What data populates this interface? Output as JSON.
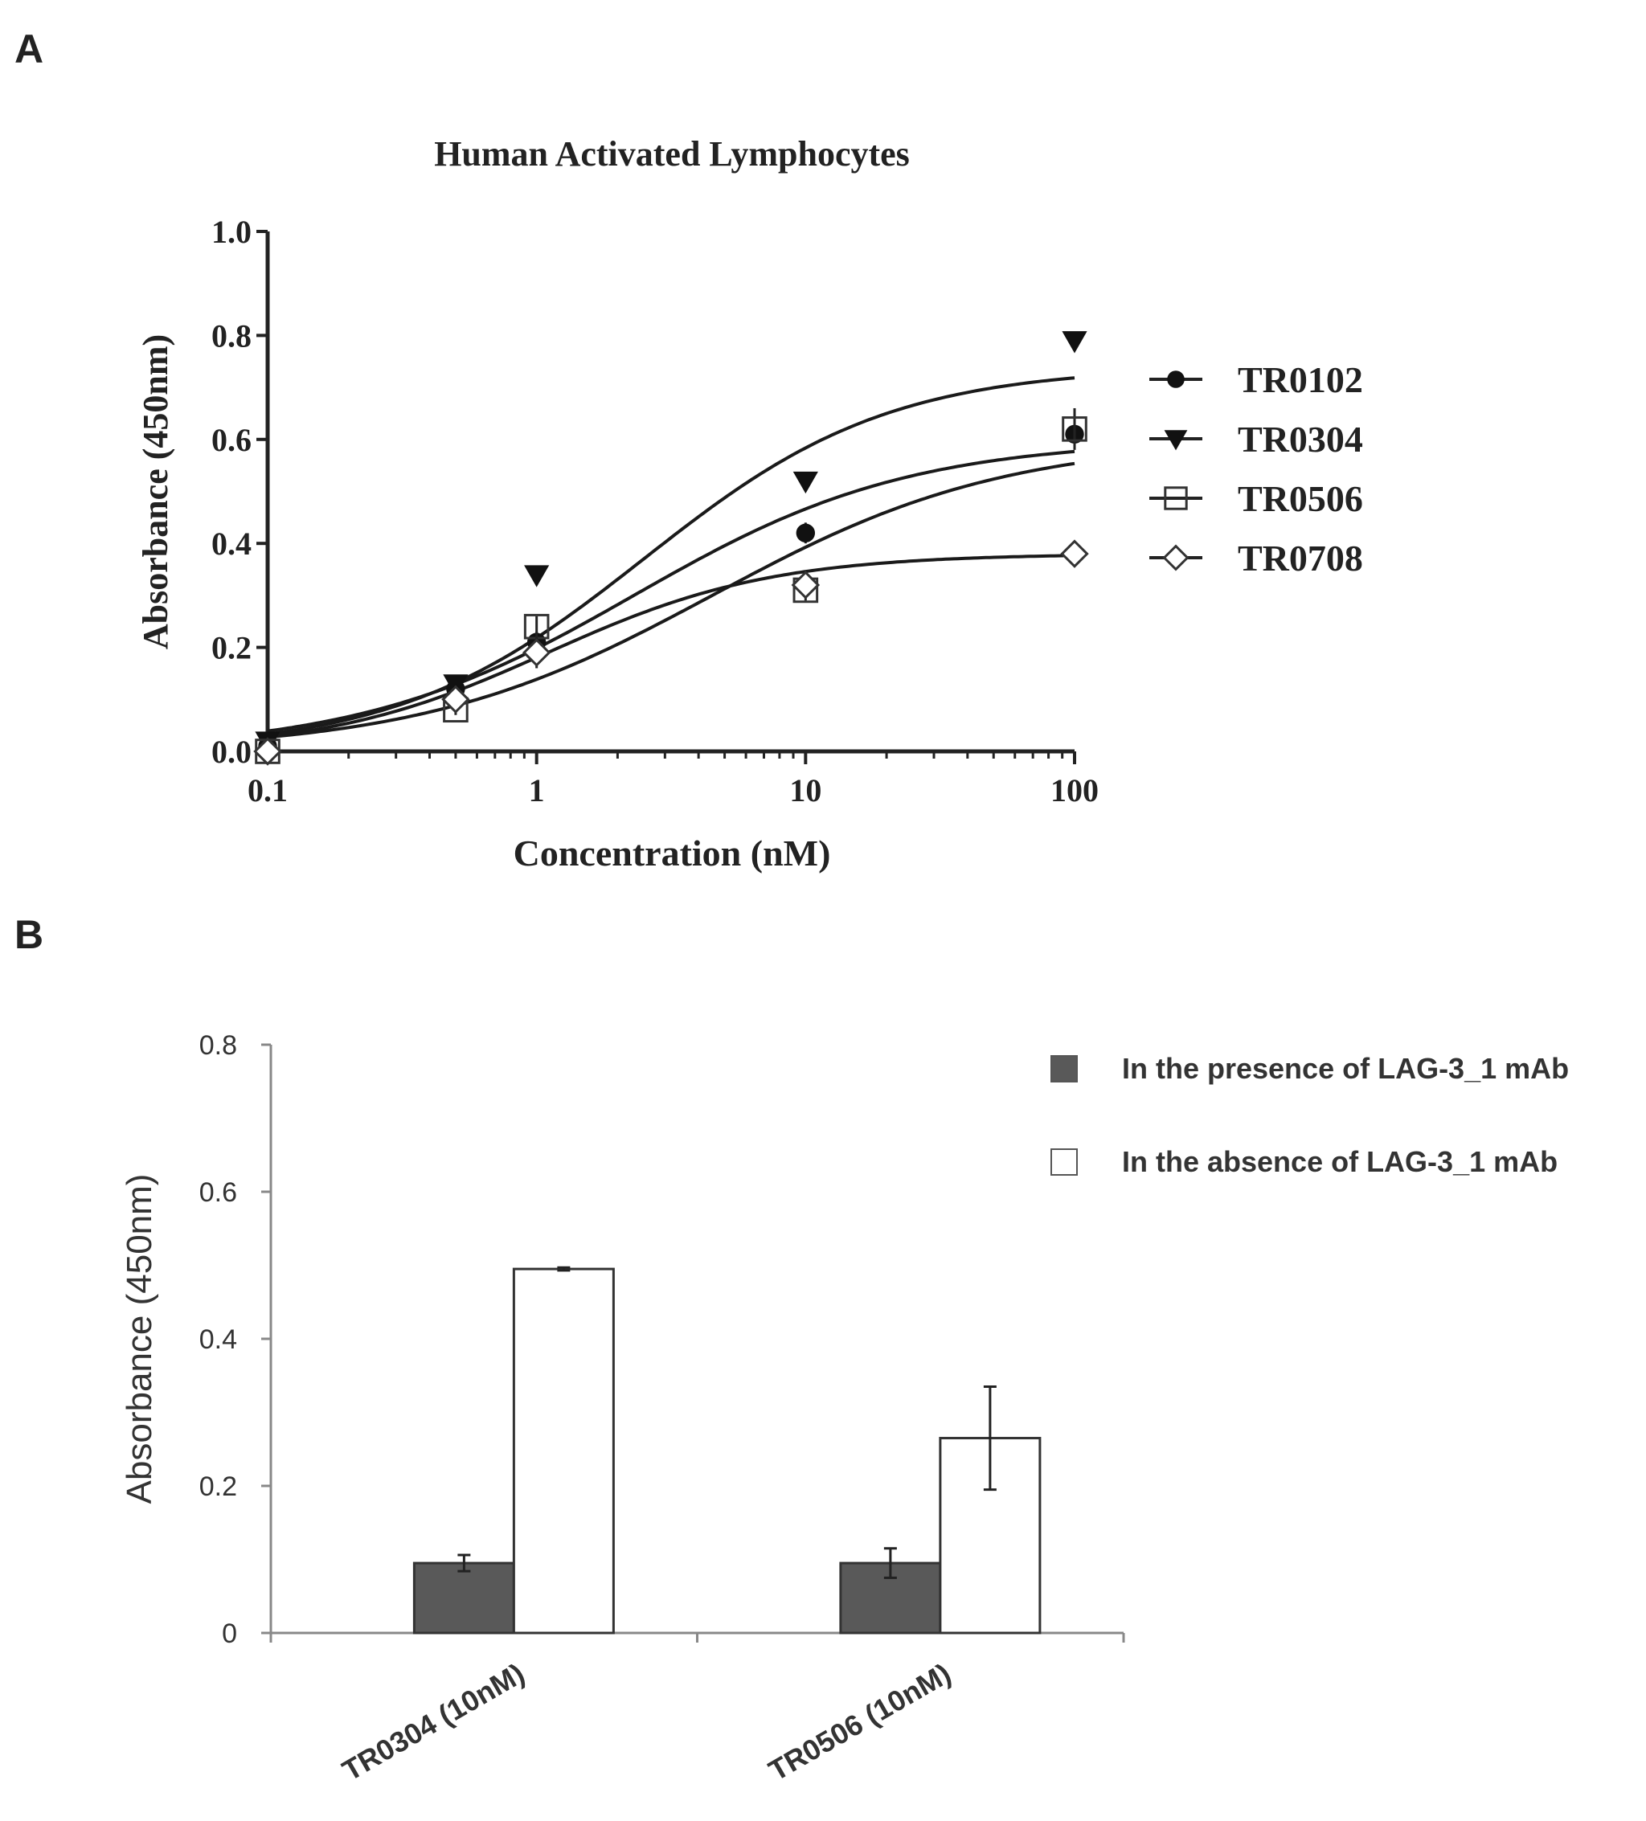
{
  "panel_labels": {
    "a": "A",
    "b": "B"
  },
  "chart_data": [
    {
      "type": "scatter",
      "title": "Human Activated Lymphocytes",
      "xlabel": "Concentration (nM)",
      "ylabel": "Absorbance (450nm)",
      "x_scale": "log",
      "xlim": [
        0.1,
        100
      ],
      "ylim": [
        0,
        1.0
      ],
      "x_ticks": [
        0.1,
        1,
        10,
        100
      ],
      "x_tick_labels": [
        "0.1",
        "1",
        "10",
        "100"
      ],
      "y_ticks": [
        0,
        0.2,
        0.4,
        0.6,
        0.8,
        1.0
      ],
      "y_tick_labels": [
        "0.0",
        "0.2",
        "0.4",
        "0.6",
        "0.8",
        "1.0"
      ],
      "grid": false,
      "legend_position": "right",
      "curves": "fitted sigmoid curves through points",
      "series": [
        {
          "name": "TR0102",
          "marker": "circle-filled",
          "x": [
            0.1,
            0.5,
            1,
            10,
            100
          ],
          "y": [
            0.01,
            0.12,
            0.21,
            0.42,
            0.61
          ],
          "err": [
            0.01,
            0.01,
            0.02,
            0.02,
            0.03
          ],
          "fit": {
            "bottom": 0,
            "top": 0.6,
            "ec50": 2.3,
            "hill": 0.85
          }
        },
        {
          "name": "TR0304",
          "marker": "triangle-down-filled",
          "x": [
            0.1,
            0.5,
            1,
            10,
            100
          ],
          "y": [
            0.02,
            0.13,
            0.34,
            0.52,
            0.79
          ],
          "err": [
            0.01,
            0.01,
            0.01,
            0.01,
            0.01
          ],
          "fit": {
            "bottom": 0,
            "top": 0.74,
            "ec50": 2.5,
            "hill": 0.95
          }
        },
        {
          "name": "TR0506",
          "marker": "square-open",
          "x": [
            0.1,
            0.5,
            1,
            10,
            100
          ],
          "y": [
            0.0,
            0.08,
            0.24,
            0.31,
            0.62
          ],
          "err": [
            0.01,
            0.01,
            0.02,
            0.02,
            0.04
          ],
          "fit": {
            "bottom": 0,
            "top": 0.6,
            "ec50": 4.5,
            "hill": 0.8
          }
        },
        {
          "name": "TR0708",
          "marker": "diamond-open",
          "x": [
            0.1,
            0.5,
            1,
            10,
            100
          ],
          "y": [
            0.0,
            0.1,
            0.19,
            0.32,
            0.38
          ],
          "err": [
            0.01,
            0.01,
            0.03,
            0.02,
            0.01
          ],
          "fit": {
            "bottom": 0,
            "top": 0.38,
            "ec50": 1.1,
            "hill": 1.05
          }
        }
      ]
    },
    {
      "type": "bar",
      "xlabel": "",
      "ylabel": "Absorbance (450nm)",
      "ylim": [
        0,
        0.8
      ],
      "y_ticks": [
        0,
        0.2,
        0.4,
        0.6,
        0.8
      ],
      "y_tick_labels": [
        "0",
        "0.2",
        "0.4",
        "0.6",
        "0.8"
      ],
      "categories": [
        "TR0304 (10nM)",
        "TR0506 (10nM)"
      ],
      "grid": false,
      "legend_position": "top-right",
      "series": [
        {
          "name": "In the presence of LAG-3_1 mAb",
          "color": "#595959",
          "values": [
            0.095,
            0.095
          ],
          "err": [
            0.011,
            0.02
          ]
        },
        {
          "name": "In the absence of LAG-3_1 mAb",
          "color": "#ffffff",
          "values": [
            0.495,
            0.265
          ],
          "err": [
            0.002,
            0.07
          ]
        }
      ]
    }
  ]
}
